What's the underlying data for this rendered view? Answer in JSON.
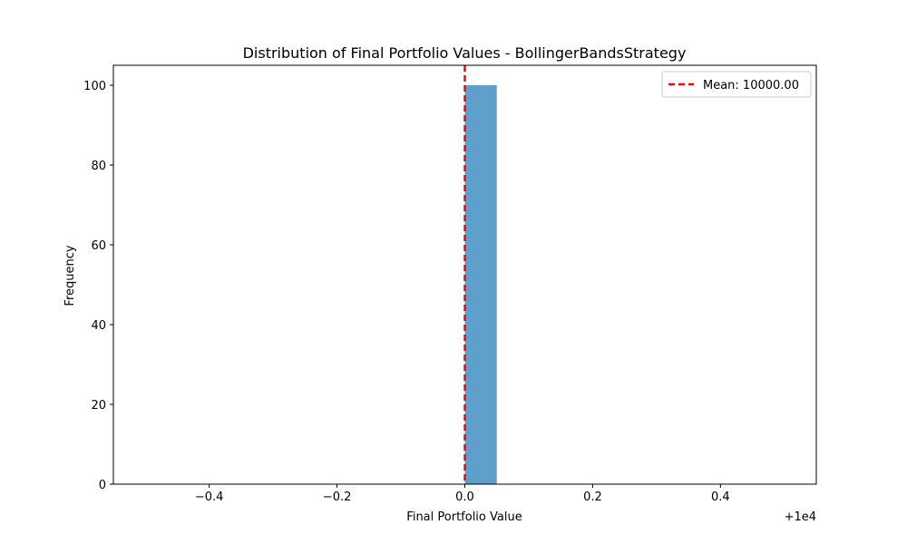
{
  "chart_data": {
    "type": "bar",
    "title": "Distribution of Final Portfolio Values - BollingerBandsStrategy",
    "xlabel": "Final Portfolio Value",
    "ylabel": "Frequency",
    "x_offset_label": "+1e4",
    "xlim": [
      -0.55,
      0.55
    ],
    "ylim": [
      0,
      105
    ],
    "x_ticks": [
      -0.4,
      -0.2,
      0.0,
      0.2,
      0.4
    ],
    "x_tick_labels": [
      "−0.4",
      "−0.2",
      "0.0",
      "0.2",
      "0.4"
    ],
    "y_ticks": [
      0,
      20,
      40,
      60,
      80,
      100
    ],
    "y_tick_labels": [
      "0",
      "20",
      "40",
      "60",
      "80",
      "100"
    ],
    "bins": [
      {
        "start": 0.0,
        "end": 0.05,
        "count": 100
      }
    ],
    "bar_color": "#5f9fcb",
    "mean_line": {
      "x": 0.0,
      "label": "Mean: 10000.00",
      "color": "#ff0000",
      "style": "dashed"
    },
    "legend_position": "top-right",
    "grid": false
  }
}
